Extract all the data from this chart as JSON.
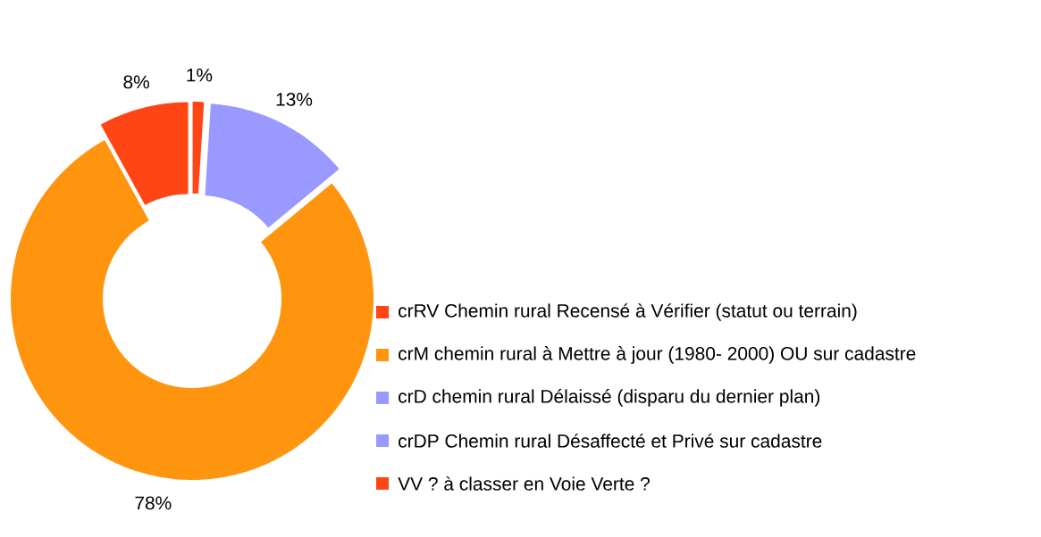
{
  "chart_data": {
    "type": "donut",
    "categories": [
      "crRV Chemin rural Recensé à Vérifier (statut ou terrain)",
      "crM chemin rural à Mettre à jour (1980- 2000) OU sur cadastre",
      "crD chemin rural Délaissé (disparu du dernier plan)",
      "crDP Chemin rural Désaffecté et Privé sur cadastre",
      "VV ? à classer en Voie Verte ?"
    ],
    "values": [
      8,
      78,
      0,
      13,
      1
    ],
    "colors": [
      "#ff4514",
      "#ff950e",
      "#9999ff",
      "#9999ff",
      "#ff4514"
    ],
    "value_labels": [
      "8%",
      "78%",
      null,
      "13%",
      "1%"
    ],
    "legend": "bottom right"
  }
}
